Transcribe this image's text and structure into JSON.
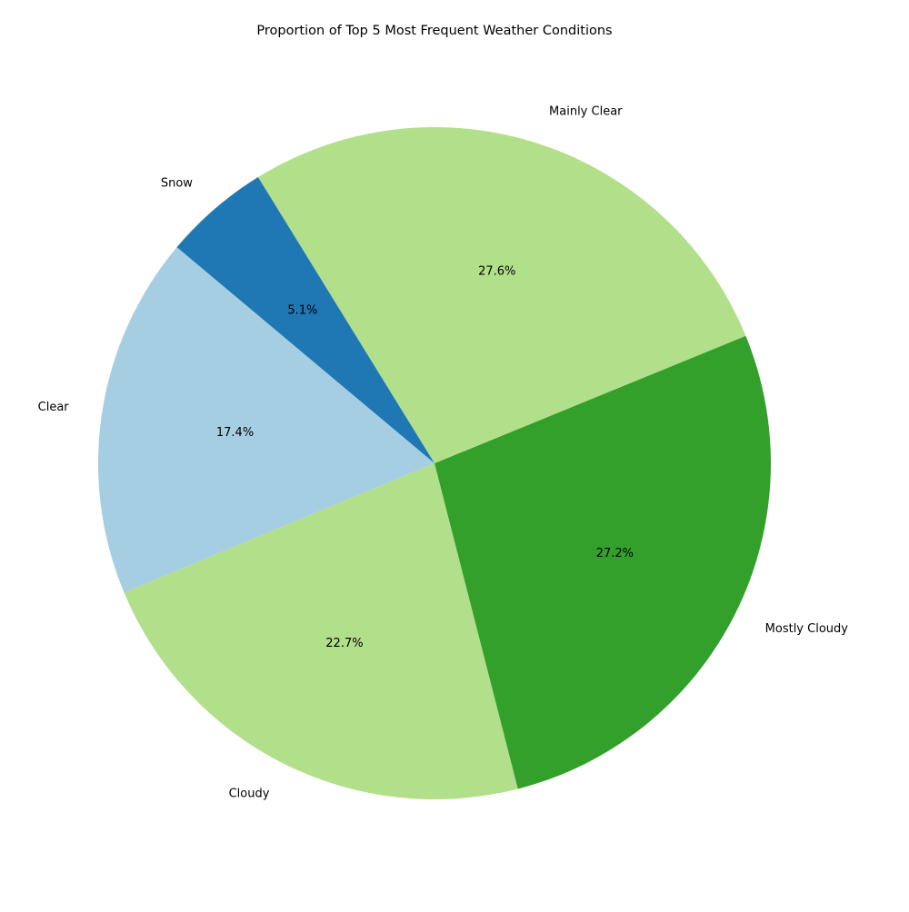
{
  "chart_data": {
    "type": "pie",
    "title": "Proportion of Top 5 Most Frequent Weather Conditions",
    "labels": [
      "Clear",
      "Cloudy",
      "Mostly Cloudy",
      "Mainly Clear",
      "Snow"
    ],
    "values": [
      17.4,
      22.7,
      27.2,
      27.6,
      5.1
    ],
    "percent_labels": [
      "17.4%",
      "22.7%",
      "27.2%",
      "27.6%",
      "5.1%"
    ],
    "colors": [
      "#a6cee3",
      "#b2df8a",
      "#33a02c",
      "#b2df8a",
      "#1f78b4"
    ],
    "start_angle_deg": 140,
    "direction": "counterclockwise",
    "legend": "none"
  }
}
